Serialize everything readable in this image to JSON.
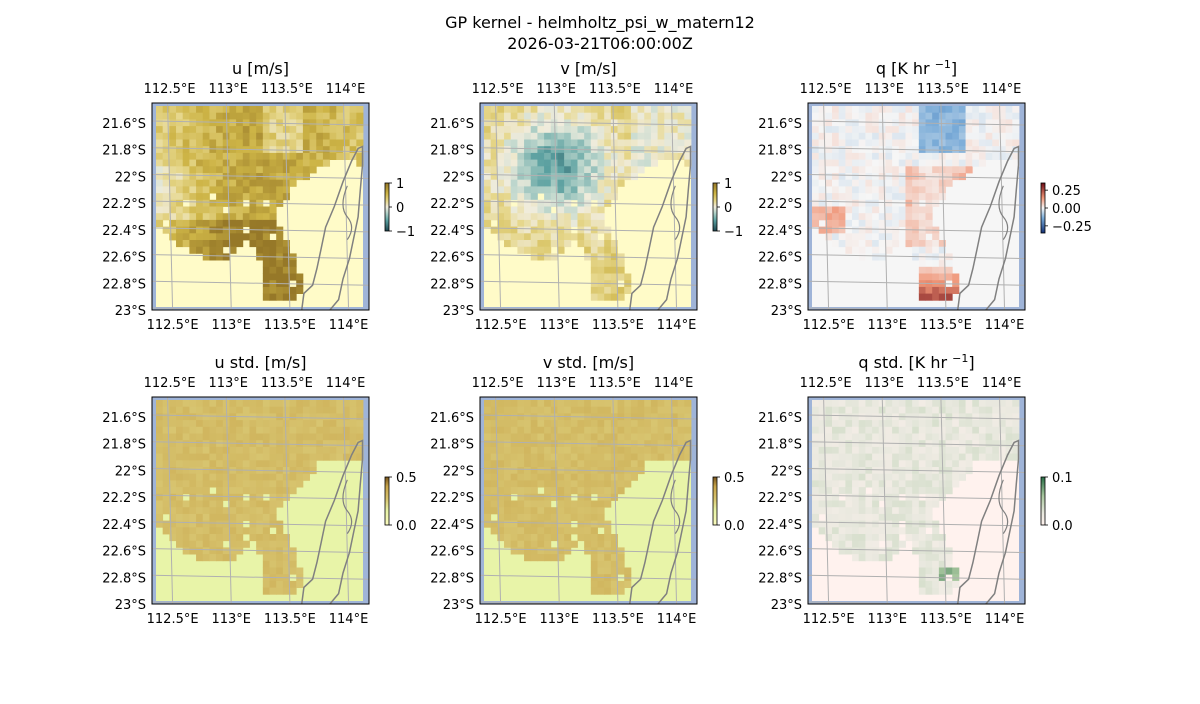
{
  "figure": {
    "title_line1": "GP kernel - helmholtz_psi_w_matern12",
    "title_line2": "2026-03-21T06:00:00Z"
  },
  "chart_data": [
    {
      "type": "heatmap",
      "id": "u",
      "title": "u [m/s]",
      "title_unit_sup": "",
      "colormap": "brown-yellow-teal diverging",
      "lon_ticks": [
        "112.5°E",
        "113°E",
        "113.5°E",
        "114°E"
      ],
      "lat_ticks": [
        "21.6°S",
        "21.8°S",
        "22°S",
        "22.2°S",
        "22.4°S",
        "22.6°S",
        "22.8°S",
        "23°S"
      ],
      "xlim": [
        112.35,
        114.2
      ],
      "ylim": [
        -23.0,
        -21.45
      ],
      "vmin": -1,
      "vmax": 1,
      "colorbar_ticks": [
        {
          "v": 1,
          "label": "1"
        },
        {
          "v": 0,
          "label": "0"
        },
        {
          "v": -1,
          "label": "−1"
        }
      ]
    },
    {
      "type": "heatmap",
      "id": "v",
      "title": "v [m/s]",
      "title_unit_sup": "",
      "colormap": "brown-yellow-teal diverging",
      "lon_ticks": [
        "112.5°E",
        "113°E",
        "113.5°E",
        "114°E"
      ],
      "lat_ticks": [
        "21.6°S",
        "21.8°S",
        "22°S",
        "22.2°S",
        "22.4°S",
        "22.6°S",
        "22.8°S",
        "23°S"
      ],
      "xlim": [
        112.35,
        114.2
      ],
      "ylim": [
        -23.0,
        -21.45
      ],
      "vmin": -1,
      "vmax": 1,
      "colorbar_ticks": [
        {
          "v": 1,
          "label": "1"
        },
        {
          "v": 0,
          "label": "0"
        },
        {
          "v": -1,
          "label": "−1"
        }
      ]
    },
    {
      "type": "heatmap",
      "id": "q",
      "title": "q [K hr ",
      "title_unit_sup": "−1",
      "title_close": "]",
      "colormap": "red-white-blue diverging",
      "lon_ticks": [
        "112.5°E",
        "113°E",
        "113.5°E",
        "114°E"
      ],
      "lat_ticks": [
        "21.6°S",
        "21.8°S",
        "22°S",
        "22.2°S",
        "22.4°S",
        "22.6°S",
        "22.8°S",
        "23°S"
      ],
      "xlim": [
        112.35,
        114.2
      ],
      "ylim": [
        -23.0,
        -21.45
      ],
      "vmin": -0.35,
      "vmax": 0.35,
      "colorbar_ticks": [
        {
          "v": 0.25,
          "label": "0.25"
        },
        {
          "v": 0.0,
          "label": "0.00"
        },
        {
          "v": -0.25,
          "label": "−0.25"
        }
      ]
    },
    {
      "type": "heatmap",
      "id": "u_std",
      "title": "u std. [m/s]",
      "title_unit_sup": "",
      "colormap": "pale yellow to brown sequential",
      "lon_ticks": [
        "112.5°E",
        "113°E",
        "113.5°E",
        "114°E"
      ],
      "lat_ticks": [
        "21.6°S",
        "21.8°S",
        "22°S",
        "22.2°S",
        "22.4°S",
        "22.6°S",
        "22.8°S",
        "23°S"
      ],
      "xlim": [
        112.35,
        114.2
      ],
      "ylim": [
        -23.0,
        -21.45
      ],
      "vmin": 0,
      "vmax": 0.5,
      "colorbar_ticks": [
        {
          "v": 0.5,
          "label": "0.5"
        },
        {
          "v": 0.0,
          "label": "0.0"
        }
      ]
    },
    {
      "type": "heatmap",
      "id": "v_std",
      "title": "v std. [m/s]",
      "title_unit_sup": "",
      "colormap": "pale yellow to brown sequential",
      "lon_ticks": [
        "112.5°E",
        "113°E",
        "113.5°E",
        "114°E"
      ],
      "lat_ticks": [
        "21.6°S",
        "21.8°S",
        "22°S",
        "22.2°S",
        "22.4°S",
        "22.6°S",
        "22.8°S",
        "23°S"
      ],
      "xlim": [
        112.35,
        114.2
      ],
      "ylim": [
        -23.0,
        -21.45
      ],
      "vmin": 0,
      "vmax": 0.5,
      "colorbar_ticks": [
        {
          "v": 0.5,
          "label": "0.5"
        },
        {
          "v": 0.0,
          "label": "0.0"
        }
      ]
    },
    {
      "type": "heatmap",
      "id": "q_std",
      "title": "q std. [K hr ",
      "title_unit_sup": "−1",
      "title_close": "]",
      "colormap": "pinkish white to green sequential",
      "lon_ticks": [
        "112.5°E",
        "113°E",
        "113.5°E",
        "114°E"
      ],
      "lat_ticks": [
        "21.6°S",
        "21.8°S",
        "22°S",
        "22.2°S",
        "22.4°S",
        "22.6°S",
        "22.8°S",
        "23°S"
      ],
      "xlim": [
        112.35,
        114.2
      ],
      "ylim": [
        -23.0,
        -21.45
      ],
      "vmin": 0,
      "vmax": 0.1,
      "colorbar_ticks": [
        {
          "v": 0.1,
          "label": "0.1"
        },
        {
          "v": 0.0,
          "label": "0.0"
        }
      ]
    }
  ],
  "colors": {
    "ocean_blue": "#9fb4d8",
    "gridline": "#b0b0b0",
    "coastline": "#808080",
    "land_uv": "#fffbc8",
    "land_std": "#e8f4a8",
    "land_q": "#f6f6f6",
    "land_qstd": "#fff2ee"
  }
}
